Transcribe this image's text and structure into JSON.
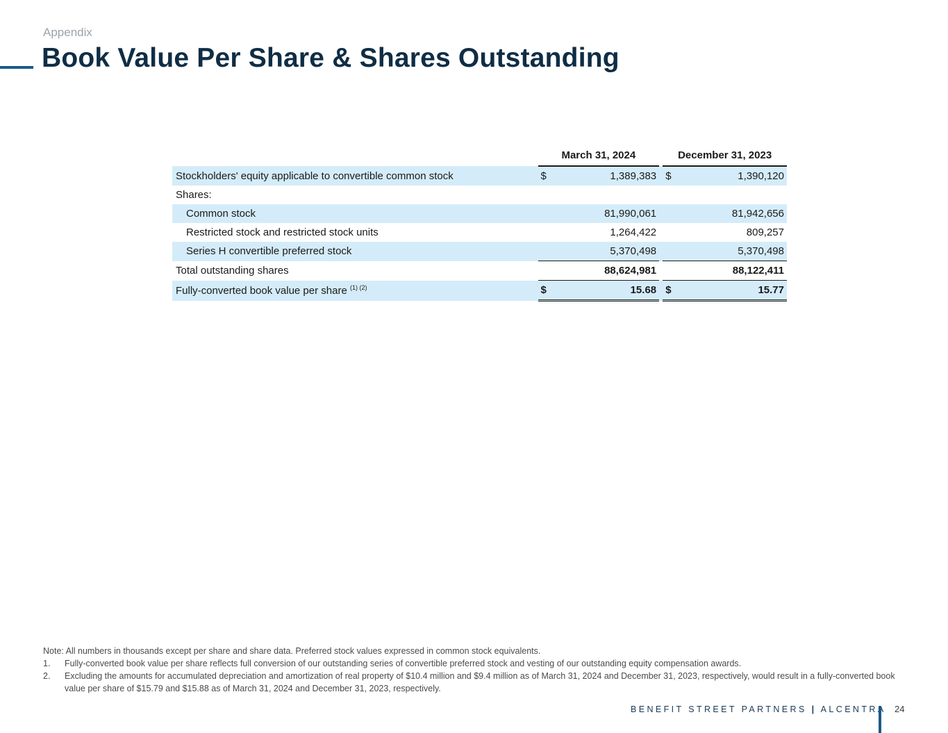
{
  "header": {
    "section": "Appendix",
    "title": "Book Value Per Share & Shares Outstanding"
  },
  "table": {
    "columns": [
      "March 31, 2024",
      "December 31, 2023"
    ],
    "rows": [
      {
        "label": "Stockholders' equity applicable to convertible common stock",
        "cur1": "$",
        "v1": "1,389,383",
        "cur2": "$",
        "v2": "1,390,120"
      },
      {
        "label": "Shares:"
      },
      {
        "label": "Common stock",
        "v1": "81,990,061",
        "v2": "81,942,656"
      },
      {
        "label": "Restricted stock and restricted stock units",
        "v1": "1,264,422",
        "v2": "809,257"
      },
      {
        "label": "Series H convertible preferred stock",
        "v1": "5,370,498",
        "v2": "5,370,498"
      },
      {
        "label": "Total outstanding shares",
        "v1": "88,624,981",
        "v2": "88,122,411"
      },
      {
        "label": "Fully-converted book value per share",
        "footnote_ref": "(1) (2)",
        "cur1": "$",
        "v1": "15.68",
        "cur2": "$",
        "v2": "15.77"
      }
    ]
  },
  "notes": {
    "note": "Note: All numbers in thousands except per share and share data. Preferred stock values expressed in common stock equivalents.",
    "items": [
      {
        "num": "1.",
        "text": "Fully-converted book value per share reflects full conversion of our outstanding series of convertible preferred stock and vesting of our outstanding equity compensation awards."
      },
      {
        "num": "2.",
        "text": "Excluding the amounts for accumulated depreciation and amortization of real property of $10.4 million and $9.4 million as of March 31, 2024 and December 31, 2023, respectively, would result in a fully-converted book value per share of $15.79 and $15.88 as of March 31, 2024 and December 31, 2023, respectively."
      }
    ]
  },
  "footer": {
    "brand_left": "BENEFIT STREET PARTNERS",
    "separator": "|",
    "brand_right": "ALCENTRA",
    "page_number": "24"
  },
  "colors": {
    "title": "#0f2d45",
    "accent": "#1b5a8c",
    "row_shade": "#d4ecf9"
  }
}
